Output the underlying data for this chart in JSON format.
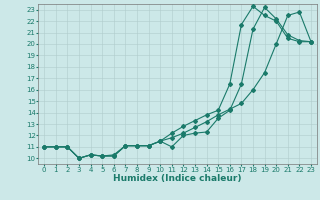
{
  "xlabel": "Humidex (Indice chaleur)",
  "ylabel": "",
  "xlim": [
    -0.5,
    23.5
  ],
  "ylim": [
    9.5,
    23.5
  ],
  "background_color": "#cce8e8",
  "grid_color": "#b0cccc",
  "line_color": "#1a7a6a",
  "line1_x": [
    0,
    1,
    2,
    3,
    4,
    5,
    6,
    7,
    8,
    9,
    10,
    11,
    12,
    13,
    14,
    15,
    16,
    17,
    18,
    19,
    20,
    21,
    22,
    23
  ],
  "line1_y": [
    11.0,
    11.0,
    11.0,
    10.0,
    10.3,
    10.2,
    10.2,
    11.1,
    11.1,
    11.1,
    11.5,
    11.0,
    12.0,
    12.2,
    12.3,
    13.5,
    14.2,
    16.5,
    21.3,
    23.2,
    22.2,
    20.8,
    20.3,
    20.2
  ],
  "line2_x": [
    0,
    1,
    2,
    3,
    4,
    5,
    6,
    7,
    8,
    9,
    10,
    11,
    12,
    13,
    14,
    15,
    16,
    17,
    18,
    19,
    20,
    21,
    22,
    23
  ],
  "line2_y": [
    11.0,
    11.0,
    11.0,
    10.0,
    10.3,
    10.2,
    10.2,
    11.1,
    11.1,
    11.1,
    11.5,
    11.8,
    12.2,
    12.7,
    13.2,
    13.8,
    14.3,
    14.8,
    16.0,
    17.5,
    20.0,
    22.5,
    22.8,
    20.2
  ],
  "line3_x": [
    0,
    1,
    2,
    3,
    4,
    5,
    6,
    7,
    8,
    9,
    10,
    11,
    12,
    13,
    14,
    15,
    16,
    17,
    18,
    19,
    20,
    21,
    22,
    23
  ],
  "line3_y": [
    11.0,
    11.0,
    11.0,
    10.0,
    10.3,
    10.2,
    10.3,
    11.1,
    11.1,
    11.1,
    11.5,
    12.2,
    12.8,
    13.3,
    13.8,
    14.2,
    16.5,
    21.7,
    23.3,
    22.5,
    22.0,
    20.5,
    20.2,
    20.2
  ],
  "marker_size": 2.0,
  "line_width": 0.8,
  "font_size_ticks": 5,
  "font_size_xlabel": 6.5
}
